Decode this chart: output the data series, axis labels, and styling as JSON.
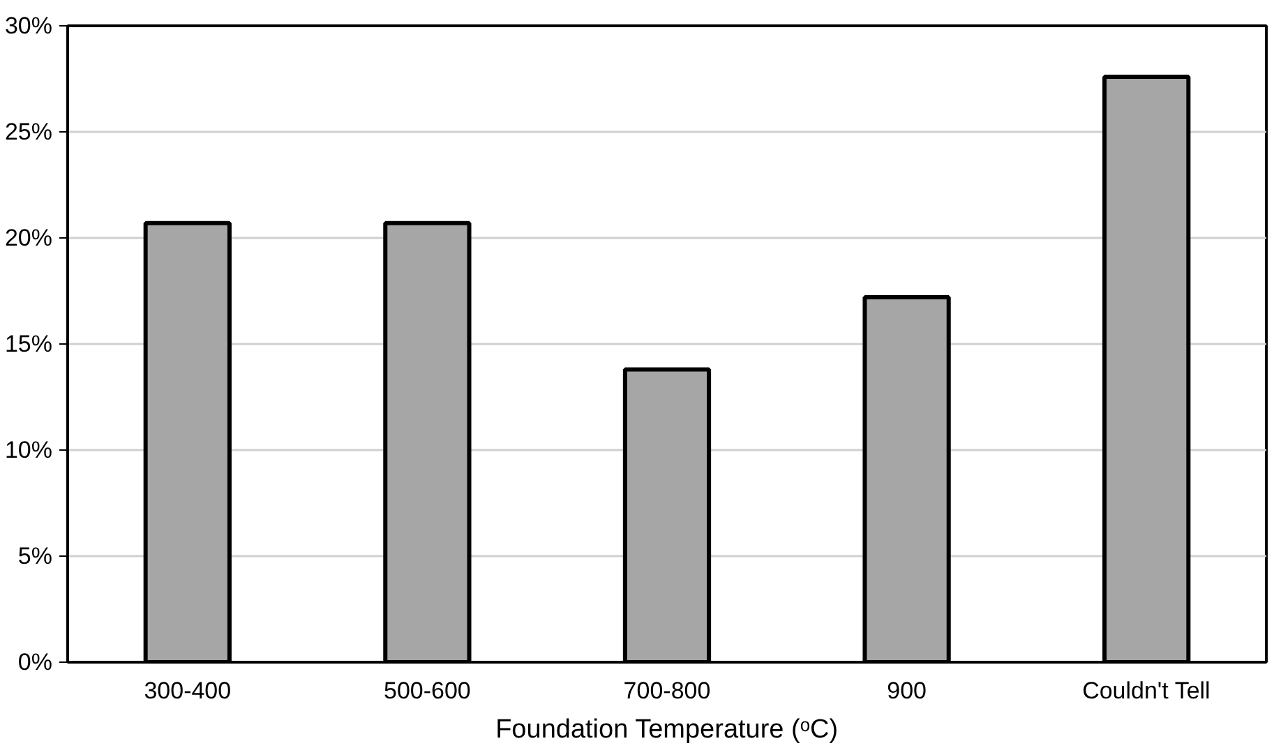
{
  "chart_data": {
    "type": "bar",
    "xlabel": "Foundation Temperature (ᵒC)",
    "categories": [
      "300-400",
      "500-600",
      "700-800",
      "900",
      "Couldn't Tell"
    ],
    "values": [
      20.7,
      20.7,
      13.8,
      17.2,
      27.6
    ],
    "color": "#a6a6a6",
    "ylim": [
      0,
      30
    ],
    "yticks": [
      {
        "value": 0,
        "label": "0%"
      },
      {
        "value": 5,
        "label": "5%"
      },
      {
        "value": 10,
        "label": "10%"
      },
      {
        "value": 15,
        "label": "15%"
      },
      {
        "value": 20,
        "label": "20%"
      },
      {
        "value": 25,
        "label": "25%"
      },
      {
        "value": 30,
        "label": "30%"
      }
    ],
    "grid": "y"
  }
}
